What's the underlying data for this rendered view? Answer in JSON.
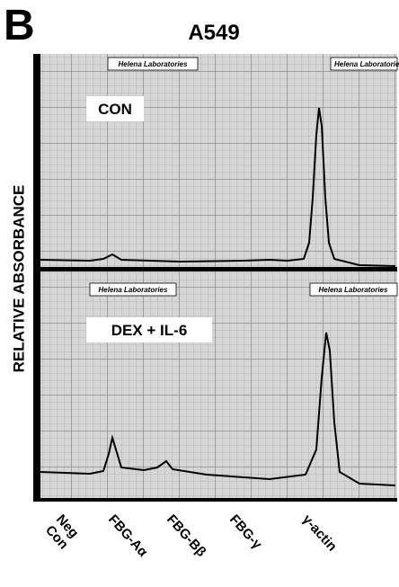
{
  "panel_label": "B",
  "title": "A549",
  "y_axis_label": "RELATIVE ABSORBANCE",
  "logos": [
    "Helena Laboratories",
    "Helena Laboratories",
    "Helena Laboratories",
    "Helena Laboratories"
  ],
  "panels": [
    {
      "label": "CON"
    },
    {
      "label": "DEX + IL-6"
    }
  ],
  "lanes": [
    [
      "Neg",
      "Con"
    ],
    [
      "FBG-Aα"
    ],
    [
      "FBG-Bβ"
    ],
    [
      "FBG-γ"
    ],
    [
      "γ-actin"
    ]
  ]
}
